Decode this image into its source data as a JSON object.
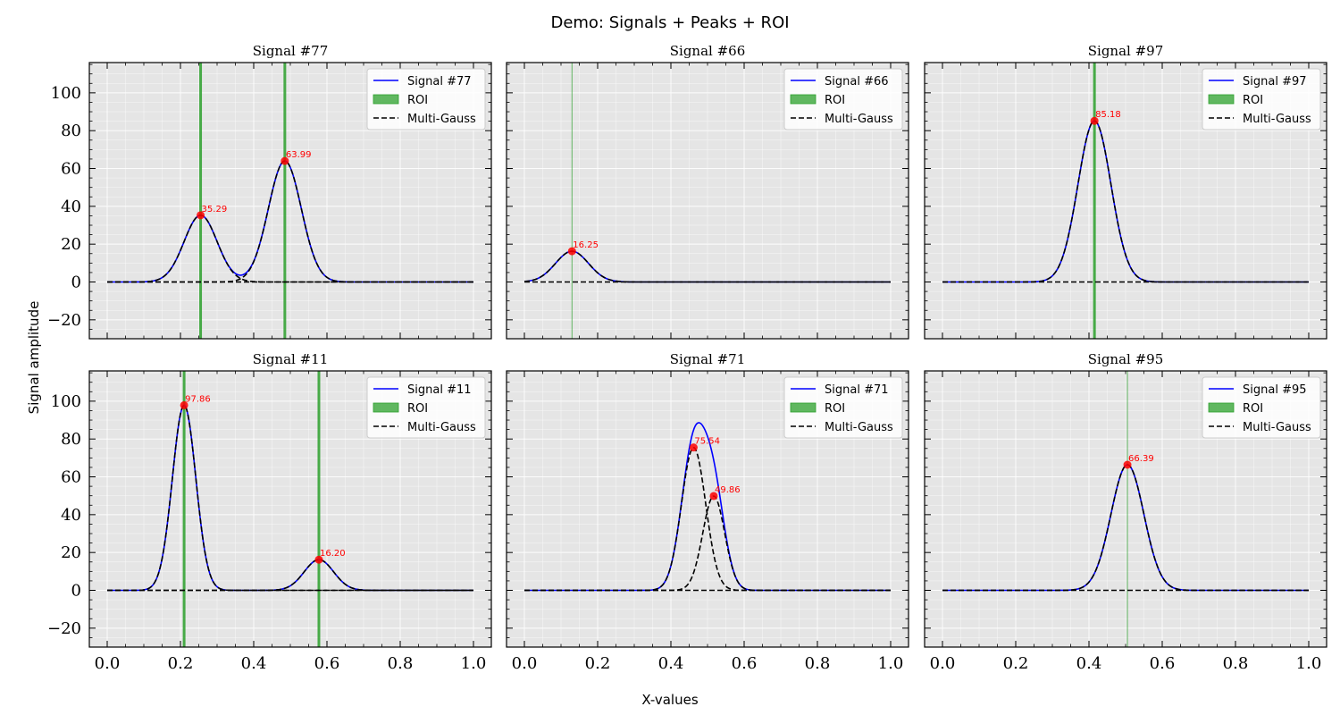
{
  "figure": {
    "suptitle": "Demo: Signals + Peaks + ROI",
    "xlabel": "X-values",
    "ylabel": "Signal amplitude"
  },
  "colors": {
    "panel_bg": "#e5e5e5",
    "grid": "#ffffff",
    "signal": "#0000ff",
    "roi": "#2ca02c",
    "fit": "#000000",
    "peak": "#ff0000"
  },
  "chart_data": [
    {
      "type": "line",
      "title": "Signal #77",
      "xlim": [
        0,
        1
      ],
      "ylim": [
        -30,
        116
      ],
      "xticks": [
        "0.0",
        "0.2",
        "0.4",
        "0.6",
        "0.8",
        "1.0"
      ],
      "yticks": [
        "−20",
        "0",
        "20",
        "40",
        "60",
        "80",
        "100"
      ],
      "grid": true,
      "legend": {
        "placement": "top-right",
        "entries": [
          "Signal #77",
          "ROI",
          "Multi-Gauss"
        ]
      },
      "components": [
        {
          "amplitude": 35.29,
          "center": 0.255,
          "sigma": 0.045
        },
        {
          "amplitude": 63.99,
          "center": 0.485,
          "sigma": 0.045
        }
      ],
      "peaks": [
        {
          "x": 0.255,
          "y": 35.29,
          "label": "35.29"
        },
        {
          "x": 0.485,
          "y": 63.99,
          "label": "63.99"
        }
      ],
      "roi_x": [
        0.255,
        0.485
      ]
    },
    {
      "type": "line",
      "title": "Signal #66",
      "xlim": [
        0,
        1
      ],
      "ylim": [
        -30,
        116
      ],
      "xticks": [
        "0.0",
        "0.2",
        "0.4",
        "0.6",
        "0.8",
        "1.0"
      ],
      "yticks": [
        "−20",
        "0",
        "20",
        "40",
        "60",
        "80",
        "100"
      ],
      "grid": true,
      "legend": {
        "placement": "top-right",
        "entries": [
          "Signal #66",
          "ROI",
          "Multi-Gauss"
        ]
      },
      "components": [
        {
          "amplitude": 16.25,
          "center": 0.13,
          "sigma": 0.045
        }
      ],
      "peaks": [
        {
          "x": 0.13,
          "y": 16.25,
          "label": "16.25"
        }
      ],
      "roi_x": [
        0.13
      ]
    },
    {
      "type": "line",
      "title": "Signal #97",
      "xlim": [
        0,
        1
      ],
      "ylim": [
        -30,
        116
      ],
      "xticks": [
        "0.0",
        "0.2",
        "0.4",
        "0.6",
        "0.8",
        "1.0"
      ],
      "yticks": [
        "−20",
        "0",
        "20",
        "40",
        "60",
        "80",
        "100"
      ],
      "grid": true,
      "legend": {
        "placement": "top-right",
        "entries": [
          "Signal #97",
          "ROI",
          "Multi-Gauss"
        ]
      },
      "components": [
        {
          "amplitude": 85.18,
          "center": 0.415,
          "sigma": 0.045
        }
      ],
      "peaks": [
        {
          "x": 0.415,
          "y": 85.18,
          "label": "85.18"
        }
      ],
      "roi_x": [
        0.415
      ]
    },
    {
      "type": "line",
      "title": "Signal #11",
      "xlim": [
        0,
        1
      ],
      "ylim": [
        -30,
        116
      ],
      "xticks": [
        "0.0",
        "0.2",
        "0.4",
        "0.6",
        "0.8",
        "1.0"
      ],
      "yticks": [
        "−20",
        "0",
        "20",
        "40",
        "60",
        "80",
        "100"
      ],
      "grid": true,
      "legend": {
        "placement": "top-right",
        "entries": [
          "Signal #11",
          "ROI",
          "Multi-Gauss"
        ]
      },
      "components": [
        {
          "amplitude": 97.86,
          "center": 0.21,
          "sigma": 0.032
        },
        {
          "amplitude": 16.2,
          "center": 0.578,
          "sigma": 0.04
        }
      ],
      "peaks": [
        {
          "x": 0.21,
          "y": 97.86,
          "label": "97.86"
        },
        {
          "x": 0.578,
          "y": 16.2,
          "label": "16.20"
        }
      ],
      "roi_x": [
        0.21,
        0.578
      ]
    },
    {
      "type": "line",
      "title": "Signal #71",
      "xlim": [
        0,
        1
      ],
      "ylim": [
        -30,
        116
      ],
      "xticks": [
        "0.0",
        "0.2",
        "0.4",
        "0.6",
        "0.8",
        "1.0"
      ],
      "yticks": [
        "−20",
        "0",
        "20",
        "40",
        "60",
        "80",
        "100"
      ],
      "grid": true,
      "legend": {
        "placement": "top-right",
        "entries": [
          "Signal #71",
          "ROI",
          "Multi-Gauss"
        ]
      },
      "components": [
        {
          "amplitude": 75.54,
          "center": 0.462,
          "sigma": 0.033
        },
        {
          "amplitude": 49.86,
          "center": 0.517,
          "sigma": 0.03
        }
      ],
      "peaks": [
        {
          "x": 0.462,
          "y": 75.54,
          "label": "75.54"
        },
        {
          "x": 0.517,
          "y": 49.86,
          "label": "49.86"
        }
      ],
      "roi_x": []
    },
    {
      "type": "line",
      "title": "Signal #95",
      "xlim": [
        0,
        1
      ],
      "ylim": [
        -30,
        116
      ],
      "xticks": [
        "0.0",
        "0.2",
        "0.4",
        "0.6",
        "0.8",
        "1.0"
      ],
      "yticks": [
        "−20",
        "0",
        "20",
        "40",
        "60",
        "80",
        "100"
      ],
      "grid": true,
      "legend": {
        "placement": "top-right",
        "entries": [
          "Signal #95",
          "ROI",
          "Multi-Gauss"
        ]
      },
      "components": [
        {
          "amplitude": 66.39,
          "center": 0.505,
          "sigma": 0.045
        }
      ],
      "peaks": [
        {
          "x": 0.505,
          "y": 66.39,
          "label": "66.39"
        }
      ],
      "roi_x": [
        0.505
      ]
    }
  ]
}
